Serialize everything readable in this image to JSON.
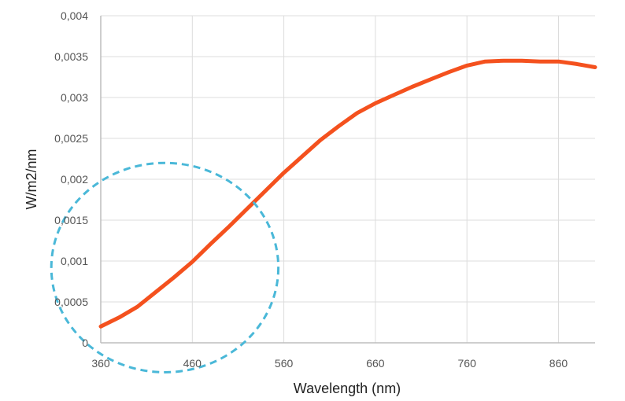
{
  "chart_data": {
    "type": "line",
    "xlabel": "Wavelength (nm)",
    "ylabel": "W/m2/nm",
    "xlim": [
      360,
      900
    ],
    "ylim": [
      0,
      0.004
    ],
    "x_ticks": [
      {
        "value": 360,
        "label": "360"
      },
      {
        "value": 460,
        "label": "460"
      },
      {
        "value": 560,
        "label": "560"
      },
      {
        "value": 660,
        "label": "660"
      },
      {
        "value": 760,
        "label": "760"
      },
      {
        "value": 860,
        "label": "860"
      }
    ],
    "y_ticks": [
      {
        "value": 0,
        "label": "0"
      },
      {
        "value": 0.0005,
        "label": "0,0005"
      },
      {
        "value": 0.001,
        "label": "0,001"
      },
      {
        "value": 0.0015,
        "label": "0,0015"
      },
      {
        "value": 0.002,
        "label": "0,002"
      },
      {
        "value": 0.0025,
        "label": "0,0025"
      },
      {
        "value": 0.003,
        "label": "0,003"
      },
      {
        "value": 0.0035,
        "label": "0,0035"
      },
      {
        "value": 0.004,
        "label": "0,004"
      }
    ],
    "grid": true,
    "series": [
      {
        "color": "#f4511e",
        "x": [
          360,
          380,
          400,
          420,
          440,
          460,
          480,
          500,
          520,
          540,
          560,
          580,
          600,
          620,
          640,
          660,
          680,
          700,
          720,
          740,
          760,
          780,
          800,
          820,
          840,
          860,
          880,
          900
        ],
        "y": [
          0.0002,
          0.00031,
          0.00044,
          0.00062,
          0.0008,
          0.00099,
          0.00121,
          0.00142,
          0.00164,
          0.00186,
          0.00208,
          0.00228,
          0.00248,
          0.00265,
          0.00281,
          0.00293,
          0.00303,
          0.00313,
          0.00322,
          0.00331,
          0.00339,
          0.00344,
          0.00345,
          0.00345,
          0.00344,
          0.00344,
          0.00341,
          0.00337
        ]
      }
    ],
    "annotations": [
      {
        "shape": "dashed-circle",
        "color": "#4ab8d8",
        "center_x": 430,
        "center_y": 0.00092,
        "radius_x": 124,
        "radius_y": 0.00128
      }
    ]
  }
}
